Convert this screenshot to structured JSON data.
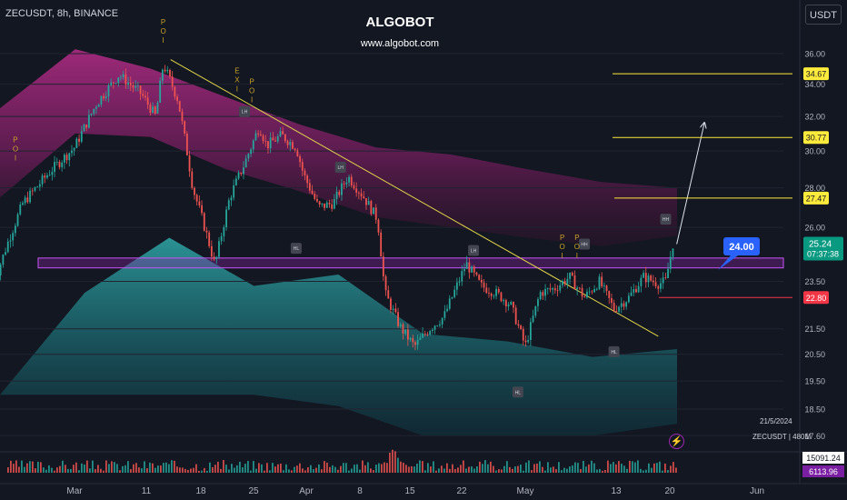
{
  "header": {
    "symbol": "ZECUSDT, 8h, BINANCE",
    "currency": "USDT"
  },
  "branding": {
    "title": "ALGOBOT",
    "url": "www.algobot.com"
  },
  "footer": {
    "date": "21/5/2024",
    "info": "ZECUSDT | 480M"
  },
  "chart_data": {
    "type": "candlestick",
    "timeframe": "8h",
    "y_axis": {
      "scale": "log",
      "ticks": [
        36.0,
        34.0,
        32.0,
        30.0,
        28.0,
        26.0,
        23.5,
        21.5,
        20.5,
        19.5,
        18.5,
        17.6
      ]
    },
    "x_axis": {
      "ticks": [
        "Mar",
        "11",
        "18",
        "25",
        "Apr",
        "8",
        "15",
        "22",
        "May",
        "13",
        "20",
        "Jun"
      ]
    },
    "price_path": [
      [
        "2024-02-19",
        23.3
      ],
      [
        "2024-02-21",
        25.3
      ],
      [
        "2024-02-23",
        27.2
      ],
      [
        "2024-02-27",
        29.0
      ],
      [
        "2024-03-01",
        30.2
      ],
      [
        "2024-03-04",
        32.8
      ],
      [
        "2024-03-07",
        34.6
      ],
      [
        "2024-03-10",
        33.4
      ],
      [
        "2024-03-12",
        32.0
      ],
      [
        "2024-03-13",
        35.3
      ],
      [
        "2024-03-15",
        33.0
      ],
      [
        "2024-03-17",
        28.0
      ],
      [
        "2024-03-19",
        25.5
      ],
      [
        "2024-03-20",
        24.2
      ],
      [
        "2024-03-22",
        27.5
      ],
      [
        "2024-03-24",
        29.3
      ],
      [
        "2024-03-26",
        31.4
      ],
      [
        "2024-03-27",
        30.3
      ],
      [
        "2024-03-29",
        30.9
      ],
      [
        "2024-03-31",
        30.2
      ],
      [
        "2024-04-01",
        28.7
      ],
      [
        "2024-04-03",
        27.0
      ],
      [
        "2024-04-05",
        27.2
      ],
      [
        "2024-04-07",
        28.6
      ],
      [
        "2024-04-09",
        27.6
      ],
      [
        "2024-04-11",
        26.4
      ],
      [
        "2024-04-12",
        23.0
      ],
      [
        "2024-04-14",
        21.6
      ],
      [
        "2024-04-16",
        20.8
      ],
      [
        "2024-04-18",
        21.5
      ],
      [
        "2024-04-20",
        22.0
      ],
      [
        "2024-04-22",
        23.5
      ],
      [
        "2024-04-23",
        24.3
      ],
      [
        "2024-04-25",
        23.3
      ],
      [
        "2024-04-27",
        23.0
      ],
      [
        "2024-04-29",
        22.5
      ],
      [
        "2024-05-01",
        20.8
      ],
      [
        "2024-05-03",
        23.0
      ],
      [
        "2024-05-05",
        23.2
      ],
      [
        "2024-05-07",
        23.7
      ],
      [
        "2024-05-09",
        22.8
      ],
      [
        "2024-05-11",
        23.5
      ],
      [
        "2024-05-13",
        22.3
      ],
      [
        "2024-05-15",
        22.8
      ],
      [
        "2024-05-17",
        23.7
      ],
      [
        "2024-05-19",
        23.4
      ],
      [
        "2024-05-20",
        23.5
      ],
      [
        "2024-05-21",
        25.24
      ]
    ],
    "last_price": {
      "value": "25.24",
      "countdown": "07:37:38"
    },
    "price_levels": [
      {
        "label": "34.67",
        "value": 34.67,
        "color": "#ffeb3b"
      },
      {
        "label": "30.77",
        "value": 30.77,
        "color": "#ffeb3b"
      },
      {
        "label": "27.47",
        "value": 27.47,
        "color": "#ffeb3b"
      },
      {
        "label": "22.80",
        "value": 22.8,
        "color": "#f23645"
      }
    ],
    "zone": {
      "top": 24.55,
      "bottom": 24.1
    },
    "callout": {
      "label": "24.00",
      "value": 24.0,
      "color": "#2962ff"
    },
    "trendline": [
      [
        "2024-03-14",
        35.6
      ],
      [
        "2024-05-19",
        21.2
      ]
    ],
    "projection": [
      [
        "2024-05-21",
        25.2
      ],
      [
        "2024-05-24",
        31.6
      ]
    ],
    "band_upper": {
      "top": [
        32.5,
        36.3,
        35.0,
        33.2,
        31.5,
        30.2,
        29.8,
        29.0,
        28.3,
        28.0
      ],
      "bottom": [
        27.5,
        31.0,
        30.8,
        29.0,
        27.8,
        26.5,
        26.0,
        25.5,
        25.1,
        25.6
      ]
    },
    "band_lower": {
      "top": [
        19.0,
        23.0,
        25.5,
        23.3,
        23.8,
        21.3,
        21.0,
        20.4,
        20.7
      ],
      "bottom": [
        19.0,
        19.0,
        19.0,
        19.0,
        18.6,
        17.6,
        17.6,
        17.6,
        18.0
      ]
    },
    "labels_structure": [
      {
        "text": "LH",
        "date": "2024-03-24",
        "value": 32.3
      },
      {
        "text": "LH",
        "date": "2024-04-06",
        "value": 29.1
      },
      {
        "text": "HL",
        "date": "2024-03-31",
        "value": 25.0
      },
      {
        "text": "LH",
        "date": "2024-04-24",
        "value": 24.9
      },
      {
        "text": "HH",
        "date": "2024-05-09",
        "value": 25.2
      },
      {
        "text": "HH",
        "date": "2024-05-20",
        "value": 26.4
      },
      {
        "text": "HL",
        "date": "2024-05-13",
        "value": 20.6
      },
      {
        "text": "HL",
        "date": "2024-04-30",
        "value": 19.1
      }
    ],
    "labels_vertical": [
      {
        "text": "POI",
        "date": "2024-02-22",
        "value": 30.5
      },
      {
        "text": "POI",
        "date": "2024-03-13",
        "value": 38.0
      },
      {
        "text": "EXI",
        "date": "2024-03-23",
        "value": 34.7
      },
      {
        "text": "POI",
        "date": "2024-03-25",
        "value": 34.0
      },
      {
        "text": "POI",
        "date": "2024-05-06",
        "value": 25.4
      },
      {
        "text": "POI",
        "date": "2024-05-08",
        "value": 25.4
      }
    ],
    "volume": {
      "labels": [
        "15091.24",
        "6113.96"
      ]
    }
  }
}
